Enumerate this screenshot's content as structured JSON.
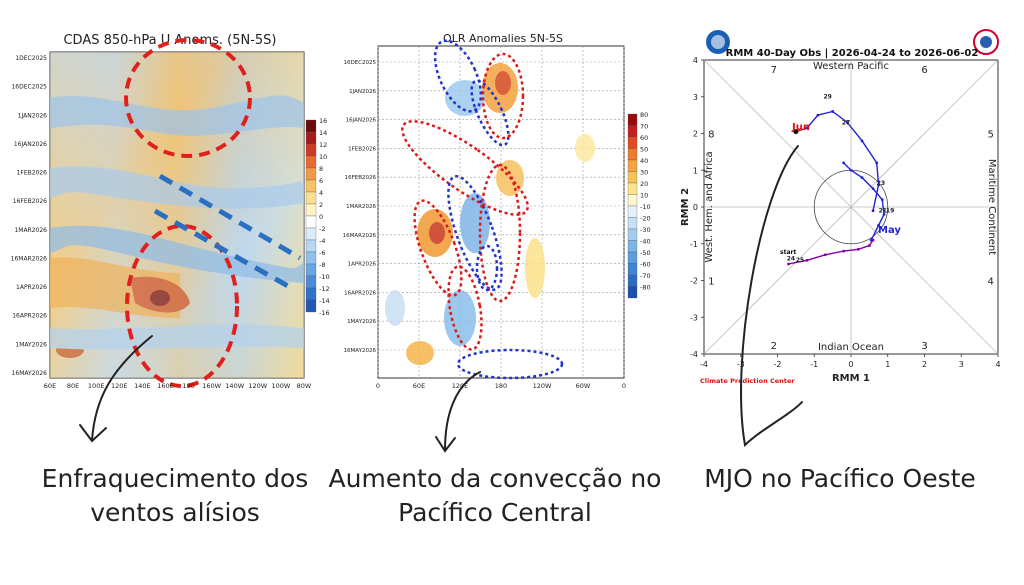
{
  "charts": {
    "u850": {
      "title": "CDAS 850-hPa U Anoms. (5N-5S)",
      "y_ticks": [
        "1DEC2025",
        "16DEC2025",
        "1JAN2026",
        "16JAN2026",
        "1FEB2026",
        "16FEB2026",
        "1MAR2026",
        "16MAR2026",
        "1APR2026",
        "16APR2026",
        "1MAY2026",
        "16MAY2026"
      ],
      "x_ticks": [
        "60E",
        "80E",
        "100E",
        "120E",
        "140E",
        "160E",
        "180",
        "160W",
        "140W",
        "120W",
        "100W",
        "80W"
      ],
      "colorbar": [
        "16",
        "14",
        "12",
        "10",
        "8",
        "6",
        "4",
        "2",
        "0",
        "-2",
        "-4",
        "-6",
        "-8",
        "-10",
        "-12",
        "-14",
        "-16"
      ]
    },
    "olr": {
      "title": "OLR Anomalies 5N-5S",
      "y_ticks": [
        "16DEC2025",
        "1JAN2026",
        "16JAN2026",
        "1FEB2026",
        "16FEB2026",
        "1MAR2026",
        "16MAR2026",
        "1APR2026",
        "16APR2026",
        "1MAY2026",
        "16MAY2026"
      ],
      "x_ticks": [
        "0",
        "60E",
        "120E",
        "180",
        "120W",
        "60W",
        "0"
      ],
      "colorbar": [
        "80",
        "70",
        "60",
        "50",
        "40",
        "30",
        "20",
        "10",
        "-10",
        "-20",
        "-30",
        "-40",
        "-50",
        "-60",
        "-70",
        "-80"
      ]
    },
    "rmm": {
      "title": "RMM 40-Day Obs | 2026-04-24 to 2026-06-02",
      "xlabel": "RMM 1",
      "ylabel": "RMM 2",
      "x_ticks": [
        "-4",
        "-3",
        "-2",
        "-1",
        "0",
        "1",
        "2",
        "3",
        "4"
      ],
      "y_ticks": [
        "4",
        "3",
        "2",
        "1",
        "0",
        "-1",
        "-2",
        "-3",
        "-4"
      ],
      "region_top": "Western Pacific",
      "region_bottom": "Indian Ocean",
      "region_left": "West. Hem. and Africa",
      "region_right": "Maritime Continent",
      "phases": [
        "1",
        "2",
        "3",
        "4",
        "5",
        "6",
        "7",
        "8"
      ],
      "credit": "Climate Prediction Center",
      "labels": {
        "start": "start",
        "jun": "Jun",
        "may": "May"
      }
    }
  },
  "chart_data": [
    {
      "type": "heatmap",
      "title": "CDAS 850-hPa U Anoms. (5N-5S)",
      "x_ticks": [
        "60E",
        "80E",
        "100E",
        "120E",
        "140E",
        "160E",
        "180",
        "160W",
        "140W",
        "120W",
        "100W",
        "80W"
      ],
      "y_ticks": [
        "1DEC2025",
        "16DEC2025",
        "1JAN2026",
        "16JAN2026",
        "1FEB2026",
        "16FEB2026",
        "1MAR2026",
        "16MAR2026",
        "1APR2026",
        "16APR2026",
        "1MAY2026",
        "16MAY2026"
      ],
      "colorbar_levels": [
        -16,
        -14,
        -12,
        -10,
        -8,
        -6,
        -4,
        -2,
        0,
        2,
        4,
        6,
        8,
        10,
        12,
        14,
        16
      ]
    },
    {
      "type": "heatmap",
      "title": "OLR Anomalies 5N-5S",
      "x_ticks": [
        "0",
        "60E",
        "120E",
        "180",
        "120W",
        "60W",
        "0"
      ],
      "y_ticks": [
        "16DEC2025",
        "1JAN2026",
        "16JAN2026",
        "1FEB2026",
        "16FEB2026",
        "1MAR2026",
        "16MAR2026",
        "1APR2026",
        "16APR2026",
        "1MAY2026",
        "16MAY2026"
      ],
      "colorbar_levels": [
        -80,
        -70,
        -60,
        -50,
        -40,
        -30,
        -20,
        -10,
        10,
        20,
        30,
        40,
        50,
        60,
        70,
        80
      ]
    },
    {
      "type": "line",
      "title": "RMM 40-Day Obs | 2026-04-24 to 2026-06-02",
      "xlabel": "RMM 1",
      "ylabel": "RMM 2",
      "xlim": [
        -4,
        4
      ],
      "ylim": [
        -4,
        4
      ],
      "series": [
        {
          "name": "May",
          "color": "#2222dd",
          "x": [
            0.55,
            0.75,
            0.9,
            0.85,
            0.6,
            0.3,
            0.0,
            -0.2
          ],
          "y": [
            -0.9,
            -0.5,
            -0.2,
            0.2,
            0.5,
            0.8,
            1.0,
            1.2
          ]
        },
        {
          "name": "Jun",
          "color": "#dd1111",
          "x": [
            -1.5,
            -1.2
          ],
          "y": [
            2.05,
            2.15
          ]
        },
        {
          "name": "",
          "color": "#8800aa",
          "x": [
            -1.7,
            -1.2,
            -0.7,
            -0.2,
            0.2,
            0.5,
            0.6
          ],
          "y": [
            -1.55,
            -1.45,
            -1.3,
            -1.2,
            -1.15,
            -1.05,
            -0.9
          ]
        },
        {
          "name": "",
          "color": "#2222dd",
          "x": [
            -1.2,
            -0.9,
            -0.5,
            -0.1,
            0.3,
            0.7,
            0.75,
            0.6
          ],
          "y": [
            2.15,
            2.5,
            2.6,
            2.3,
            1.8,
            1.2,
            0.6,
            -0.1
          ]
        }
      ],
      "point_labels": [
        "24",
        "25",
        "27",
        "29",
        "23",
        "21",
        "19"
      ]
    }
  ],
  "captions": {
    "left": "Enfraquecimento dos ventos alísios",
    "middle": "Aumento da convecção no Pacífico Central",
    "right": "MJO no Pacífico Oeste"
  },
  "colors": {
    "red_ellipse": "#e0201c",
    "blue_dash": "#2a6fc0",
    "arrow": "#222222"
  }
}
